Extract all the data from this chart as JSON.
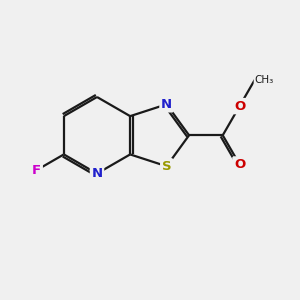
{
  "background_color": "#f0f0f0",
  "bond_color": "#1a1a1a",
  "N_color": "#2020cc",
  "S_color": "#999900",
  "O_color": "#cc0000",
  "F_color": "#cc00cc",
  "bond_width": 1.6,
  "dbo": 0.08,
  "figsize": [
    3.0,
    3.0
  ],
  "dpi": 100,
  "xlim": [
    0,
    10
  ],
  "ylim": [
    0,
    10
  ]
}
